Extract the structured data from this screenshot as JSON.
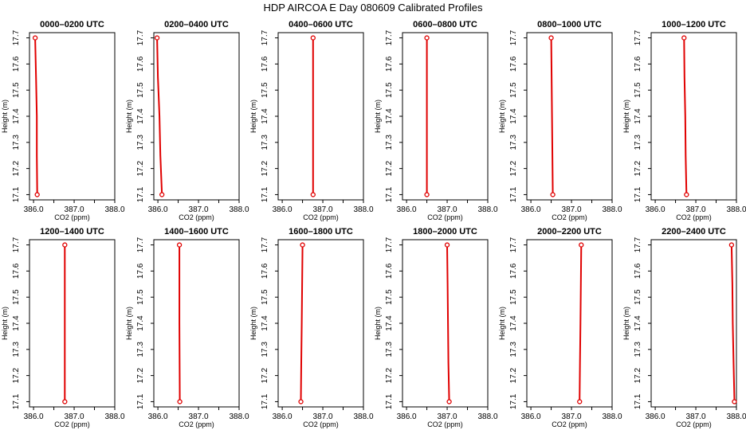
{
  "figure": {
    "title": "HDP AIRCOA E  Day 080609  Calibrated Profiles"
  },
  "chart_data": [
    {
      "type": "line",
      "title": "0000–0200 UTC",
      "xlabel": "CO2 (ppm)",
      "ylabel": "Height (m)",
      "xlim": [
        385.9,
        388.0
      ],
      "ylim": [
        17.08,
        17.72
      ],
      "xticks": [
        "386.0",
        "387.0",
        "388.0"
      ],
      "yticks": [
        "17.1",
        "17.2",
        "17.3",
        "17.4",
        "17.5",
        "17.6",
        "17.7"
      ],
      "x": [
        386.04,
        386.06,
        386.08,
        386.08,
        386.09
      ],
      "y": [
        17.7,
        17.55,
        17.4,
        17.25,
        17.1
      ],
      "points": [
        {
          "x": 386.04,
          "y": 17.7
        },
        {
          "x": 386.09,
          "y": 17.1
        }
      ]
    },
    {
      "type": "line",
      "title": "0200–0400 UTC",
      "xlabel": "CO2 (ppm)",
      "ylabel": "Height (m)",
      "xlim": [
        385.9,
        388.0
      ],
      "ylim": [
        17.08,
        17.72
      ],
      "xticks": [
        "386.0",
        "387.0",
        "388.0"
      ],
      "yticks": [
        "17.1",
        "17.2",
        "17.3",
        "17.4",
        "17.5",
        "17.6",
        "17.7"
      ],
      "x": [
        385.98,
        386.0,
        386.04,
        386.06,
        386.1
      ],
      "y": [
        17.7,
        17.55,
        17.4,
        17.25,
        17.1
      ],
      "points": [
        {
          "x": 385.98,
          "y": 17.7
        },
        {
          "x": 386.1,
          "y": 17.1
        }
      ]
    },
    {
      "type": "line",
      "title": "0400–0600 UTC",
      "xlabel": "CO2 (ppm)",
      "ylabel": "Height (m)",
      "xlim": [
        385.9,
        388.0
      ],
      "ylim": [
        17.08,
        17.72
      ],
      "xticks": [
        "386.0",
        "387.0",
        "388.0"
      ],
      "yticks": [
        "17.1",
        "17.2",
        "17.3",
        "17.4",
        "17.5",
        "17.6",
        "17.7"
      ],
      "x": [
        386.76,
        386.76,
        386.76
      ],
      "y": [
        17.7,
        17.4,
        17.1
      ],
      "points": [
        {
          "x": 386.76,
          "y": 17.7
        },
        {
          "x": 386.76,
          "y": 17.1
        }
      ]
    },
    {
      "type": "line",
      "title": "0600–0800 UTC",
      "xlabel": "CO2 (ppm)",
      "ylabel": "Height (m)",
      "xlim": [
        385.9,
        388.0
      ],
      "ylim": [
        17.08,
        17.72
      ],
      "xticks": [
        "386.0",
        "387.0",
        "388.0"
      ],
      "yticks": [
        "17.1",
        "17.2",
        "17.3",
        "17.4",
        "17.5",
        "17.6",
        "17.7"
      ],
      "x": [
        386.5,
        386.5,
        386.5
      ],
      "y": [
        17.7,
        17.4,
        17.1
      ],
      "points": [
        {
          "x": 386.5,
          "y": 17.7
        },
        {
          "x": 386.5,
          "y": 17.1
        }
      ]
    },
    {
      "type": "line",
      "title": "0800–1000 UTC",
      "xlabel": "CO2 (ppm)",
      "ylabel": "Height (m)",
      "xlim": [
        385.9,
        388.0
      ],
      "ylim": [
        17.08,
        17.72
      ],
      "xticks": [
        "386.0",
        "387.0",
        "388.0"
      ],
      "yticks": [
        "17.1",
        "17.2",
        "17.3",
        "17.4",
        "17.5",
        "17.6",
        "17.7"
      ],
      "x": [
        386.5,
        386.51,
        386.52,
        386.53,
        386.54
      ],
      "y": [
        17.7,
        17.55,
        17.4,
        17.25,
        17.1
      ],
      "points": [
        {
          "x": 386.5,
          "y": 17.7
        },
        {
          "x": 386.54,
          "y": 17.1
        }
      ]
    },
    {
      "type": "line",
      "title": "1000–1200 UTC",
      "xlabel": "CO2 (ppm)",
      "ylabel": "Height (m)",
      "xlim": [
        385.9,
        388.0
      ],
      "ylim": [
        17.08,
        17.72
      ],
      "xticks": [
        "386.0",
        "387.0",
        "388.0"
      ],
      "yticks": [
        "17.1",
        "17.2",
        "17.3",
        "17.4",
        "17.5",
        "17.6",
        "17.7"
      ],
      "x": [
        386.71,
        386.72,
        386.74,
        386.75,
        386.77
      ],
      "y": [
        17.7,
        17.55,
        17.4,
        17.25,
        17.1
      ],
      "points": [
        {
          "x": 386.71,
          "y": 17.7
        },
        {
          "x": 386.77,
          "y": 17.1
        }
      ]
    },
    {
      "type": "line",
      "title": "1200–1400 UTC",
      "xlabel": "CO2 (ppm)",
      "ylabel": "Height (m)",
      "xlim": [
        385.9,
        388.0
      ],
      "ylim": [
        17.08,
        17.72
      ],
      "xticks": [
        "386.0",
        "387.0",
        "388.0"
      ],
      "yticks": [
        "17.1",
        "17.2",
        "17.3",
        "17.4",
        "17.5",
        "17.6",
        "17.7"
      ],
      "x": [
        386.77,
        386.77,
        386.77
      ],
      "y": [
        17.7,
        17.4,
        17.1
      ],
      "points": [
        {
          "x": 386.77,
          "y": 17.7
        },
        {
          "x": 386.77,
          "y": 17.1
        }
      ]
    },
    {
      "type": "line",
      "title": "1400–1600 UTC",
      "xlabel": "CO2 (ppm)",
      "ylabel": "Height (m)",
      "xlim": [
        385.9,
        388.0
      ],
      "ylim": [
        17.08,
        17.72
      ],
      "xticks": [
        "386.0",
        "387.0",
        "388.0"
      ],
      "yticks": [
        "17.1",
        "17.2",
        "17.3",
        "17.4",
        "17.5",
        "17.6",
        "17.7"
      ],
      "x": [
        386.53,
        386.53,
        386.54
      ],
      "y": [
        17.7,
        17.4,
        17.1
      ],
      "points": [
        {
          "x": 386.53,
          "y": 17.7
        },
        {
          "x": 386.54,
          "y": 17.1
        }
      ]
    },
    {
      "type": "line",
      "title": "1600–1800 UTC",
      "xlabel": "CO2 (ppm)",
      "ylabel": "Height (m)",
      "xlim": [
        385.9,
        388.0
      ],
      "ylim": [
        17.08,
        17.72
      ],
      "xticks": [
        "386.0",
        "387.0",
        "388.0"
      ],
      "yticks": [
        "17.1",
        "17.2",
        "17.3",
        "17.4",
        "17.5",
        "17.6",
        "17.7"
      ],
      "x": [
        386.5,
        386.49,
        386.48,
        386.47,
        386.46
      ],
      "y": [
        17.7,
        17.55,
        17.4,
        17.25,
        17.1
      ],
      "points": [
        {
          "x": 386.5,
          "y": 17.7
        },
        {
          "x": 386.46,
          "y": 17.1
        }
      ]
    },
    {
      "type": "line",
      "title": "1800–2000 UTC",
      "xlabel": "CO2 (ppm)",
      "ylabel": "Height (m)",
      "xlim": [
        385.9,
        388.0
      ],
      "ylim": [
        17.08,
        17.72
      ],
      "xticks": [
        "386.0",
        "387.0",
        "388.0"
      ],
      "yticks": [
        "17.1",
        "17.2",
        "17.3",
        "17.4",
        "17.5",
        "17.6",
        "17.7"
      ],
      "x": [
        387.0,
        387.01,
        387.02,
        387.03,
        387.05
      ],
      "y": [
        17.7,
        17.55,
        17.4,
        17.25,
        17.1
      ],
      "points": [
        {
          "x": 387.0,
          "y": 17.7
        },
        {
          "x": 387.05,
          "y": 17.1
        }
      ]
    },
    {
      "type": "line",
      "title": "2000–2200 UTC",
      "xlabel": "CO2 (ppm)",
      "ylabel": "Height (m)",
      "xlim": [
        385.9,
        388.0
      ],
      "ylim": [
        17.08,
        17.72
      ],
      "xticks": [
        "386.0",
        "387.0",
        "388.0"
      ],
      "yticks": [
        "17.1",
        "17.2",
        "17.3",
        "17.4",
        "17.5",
        "17.6",
        "17.7"
      ],
      "x": [
        387.24,
        387.23,
        387.22,
        387.21,
        387.2
      ],
      "y": [
        17.7,
        17.55,
        17.4,
        17.25,
        17.1
      ],
      "points": [
        {
          "x": 387.24,
          "y": 17.7
        },
        {
          "x": 387.2,
          "y": 17.1
        }
      ]
    },
    {
      "type": "line",
      "title": "2200–2400 UTC",
      "xlabel": "CO2 (ppm)",
      "ylabel": "Height (m)",
      "xlim": [
        385.9,
        388.0
      ],
      "ylim": [
        17.08,
        17.72
      ],
      "xticks": [
        "386.0",
        "387.0",
        "388.0"
      ],
      "yticks": [
        "17.1",
        "17.2",
        "17.3",
        "17.4",
        "17.5",
        "17.6",
        "17.7"
      ],
      "x": [
        387.88,
        387.9,
        387.91,
        387.93,
        387.95
      ],
      "y": [
        17.7,
        17.55,
        17.4,
        17.25,
        17.1
      ],
      "points": [
        {
          "x": 387.88,
          "y": 17.7
        },
        {
          "x": 387.95,
          "y": 17.1
        }
      ]
    }
  ],
  "style": {
    "line_color": "#e00000",
    "marker_color": "#e00000",
    "axis_color": "#000000"
  }
}
